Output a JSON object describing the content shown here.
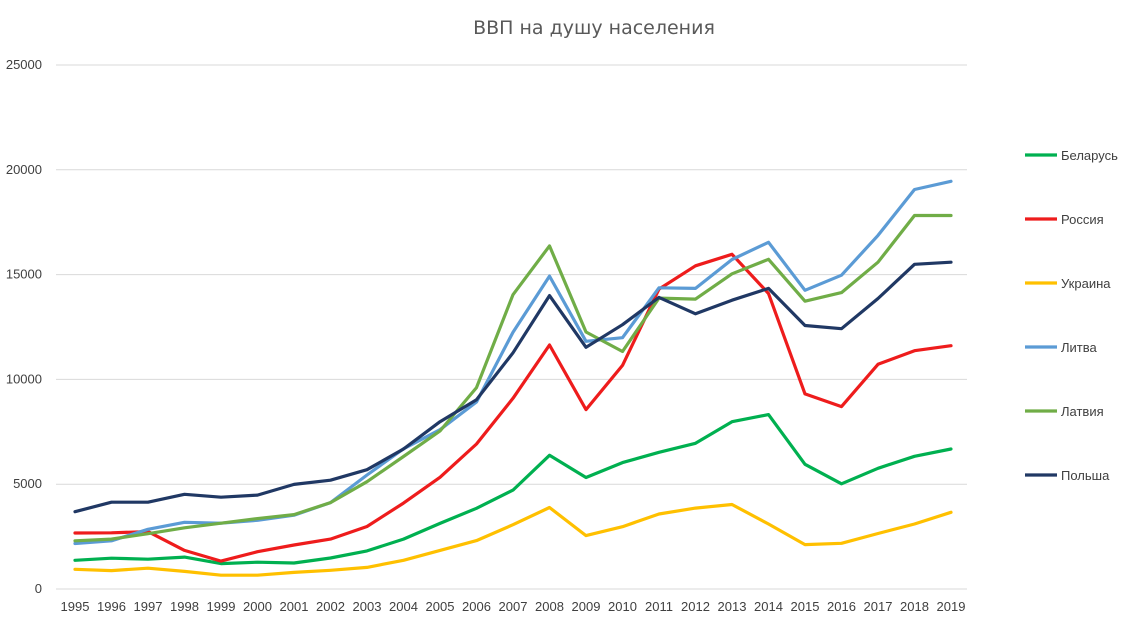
{
  "chart_data": {
    "type": "line",
    "title": "ВВП на душу населения",
    "xlabel": "",
    "ylabel": "",
    "ylim": [
      0,
      25000
    ],
    "yticks": [
      0,
      5000,
      10000,
      15000,
      20000,
      25000
    ],
    "grid": true,
    "legend_position": "right",
    "x": [
      "1995",
      "1996",
      "1997",
      "1998",
      "1999",
      "2000",
      "2001",
      "2002",
      "2003",
      "2004",
      "2005",
      "2006",
      "2007",
      "2008",
      "2009",
      "2010",
      "2011",
      "2012",
      "2013",
      "2014",
      "2015",
      "2016",
      "2017",
      "2018",
      "2019"
    ],
    "series": [
      {
        "name": "Беларусь",
        "color": "#00b050",
        "values": [
          1370,
          1470,
          1420,
          1520,
          1210,
          1280,
          1240,
          1480,
          1820,
          2380,
          3130,
          3850,
          4720,
          6380,
          5320,
          6030,
          6520,
          6950,
          7980,
          8320,
          5950,
          5020,
          5760,
          6330,
          6680
        ]
      },
      {
        "name": "Россия",
        "color": "#ee1c1c",
        "values": [
          2670,
          2680,
          2740,
          1840,
          1330,
          1780,
          2100,
          2380,
          2980,
          4100,
          5330,
          6920,
          9100,
          11640,
          8560,
          10670,
          14310,
          15420,
          15970,
          14100,
          9310,
          8700,
          10720,
          11370,
          11610
        ]
      },
      {
        "name": "Украина",
        "color": "#ffc000",
        "values": [
          940,
          880,
          990,
          840,
          660,
          660,
          790,
          890,
          1030,
          1370,
          1840,
          2310,
          3070,
          3890,
          2550,
          2970,
          3580,
          3860,
          4030,
          3100,
          2120,
          2180,
          2650,
          3100,
          3660
        ]
      },
      {
        "name": "Литва",
        "color": "#5b9bd5",
        "values": [
          2170,
          2300,
          2850,
          3180,
          3140,
          3280,
          3520,
          4120,
          5440,
          6690,
          7600,
          8920,
          12250,
          14930,
          11820,
          11990,
          14370,
          14340,
          15720,
          16540,
          14250,
          14970,
          16870,
          19060,
          19450
        ]
      },
      {
        "name": "Латвия",
        "color": "#70ad47",
        "values": [
          2300,
          2380,
          2640,
          2920,
          3140,
          3360,
          3550,
          4120,
          5120,
          6320,
          7540,
          9610,
          14040,
          16370,
          12260,
          11330,
          13880,
          13830,
          15040,
          15730,
          13730,
          14140,
          15590,
          17820,
          17820
        ]
      },
      {
        "name": "Польша",
        "color": "#203864",
        "values": [
          3690,
          4140,
          4140,
          4520,
          4380,
          4480,
          4990,
          5190,
          5690,
          6680,
          7980,
          9030,
          11270,
          14000,
          11530,
          12610,
          13910,
          13130,
          13780,
          14340,
          12570,
          12420,
          13860,
          15490,
          15590
        ]
      }
    ]
  }
}
